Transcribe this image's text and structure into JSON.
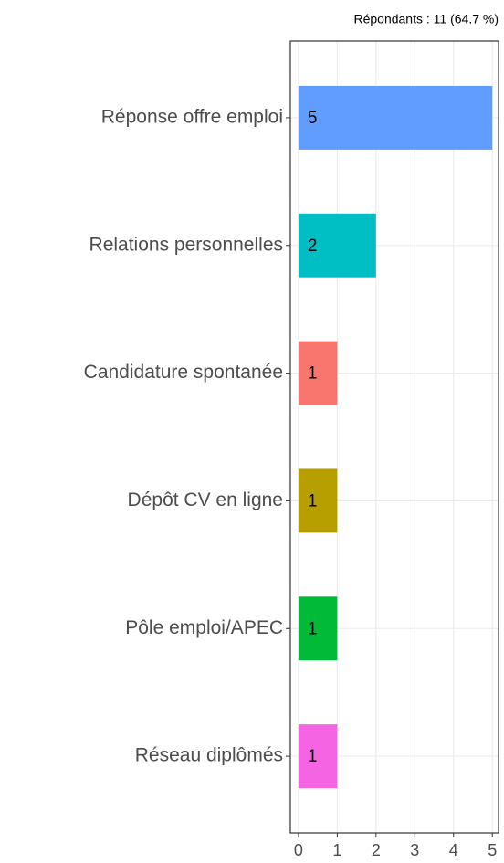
{
  "chart_data": {
    "type": "bar",
    "orientation": "horizontal",
    "subtitle": "Répondants : 11 (64.7 %)",
    "categories": [
      "Réponse offre emploi",
      "Relations personnelles",
      "Candidature spontanée",
      "Dépôt CV en ligne",
      "Pôle emploi/APEC",
      "Réseau diplômés"
    ],
    "values": [
      5,
      2,
      1,
      1,
      1,
      1
    ],
    "colors": [
      "#619CFF",
      "#00BFC4",
      "#F8766D",
      "#B79F00",
      "#00BA38",
      "#F564E3"
    ],
    "xlim": [
      -0.21,
      5.16
    ],
    "xticks": [
      0,
      1,
      2,
      3,
      4,
      5
    ],
    "grid": true
  }
}
